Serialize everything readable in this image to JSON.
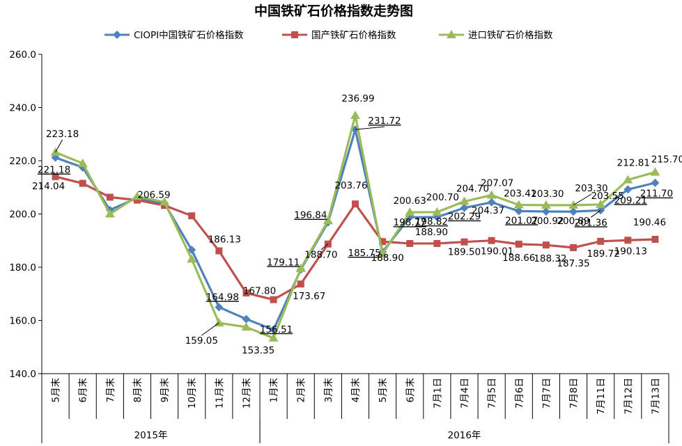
{
  "chart_data": {
    "type": "line",
    "title": "中国铁矿石价格指数走势图",
    "xlabel": "",
    "ylabel": "",
    "ylim": [
      140,
      260
    ],
    "yticks": [
      "140.0",
      "160.0",
      "180.0",
      "200.0",
      "220.0",
      "240.0",
      "260.0"
    ],
    "grid": false,
    "legend_position": "top",
    "categories": [
      "5月末",
      "6月末",
      "7月末",
      "8月末",
      "9月末",
      "10月末",
      "11月末",
      "12月末",
      "1月末",
      "2月末",
      "3月末",
      "4月末",
      "5月末",
      "6月末",
      "7月1日",
      "7月4日",
      "7月5日",
      "7月6日",
      "7月7日",
      "7月8日",
      "7月11日",
      "7月12日",
      "7月13日"
    ],
    "year_groups": [
      {
        "label": "2015年",
        "start": 0,
        "end": 7
      },
      {
        "label": "2016年",
        "start": 8,
        "end": 22
      }
    ],
    "series": [
      {
        "name": "CIOPI中国铁矿石价格指数",
        "color": "#4f81bd",
        "marker": "diamond",
        "values": [
          221.18,
          217.5,
          201.5,
          206.0,
          204.0,
          186.5,
          164.98,
          160.5,
          156.51,
          179.11,
          196.84,
          231.72,
          185.75,
          198.77,
          198.82,
          202.29,
          204.37,
          201.07,
          200.92,
          200.89,
          201.36,
          209.21,
          211.7
        ]
      },
      {
        "name": "国产铁矿石价格指数",
        "color": "#c0504d",
        "marker": "square",
        "values": [
          214.04,
          211.5,
          206.3,
          205.2,
          203.2,
          199.3,
          186.13,
          170.3,
          167.8,
          173.67,
          188.7,
          203.76,
          189.6,
          188.9,
          188.9,
          189.5,
          190.01,
          188.66,
          188.32,
          187.35,
          189.72,
          190.13,
          190.46
        ]
      },
      {
        "name": "进口铁矿石价格指数",
        "color": "#9bbb59",
        "marker": "triangle",
        "values": [
          223.18,
          219.0,
          200.0,
          206.59,
          204.5,
          183.0,
          159.05,
          157.5,
          153.35,
          179.5,
          197.5,
          236.99,
          185.0,
          200.63,
          200.7,
          204.7,
          207.07,
          203.41,
          203.3,
          203.3,
          203.55,
          212.81,
          215.7
        ]
      }
    ],
    "annotations": [
      {
        "text": "223.18",
        "series": 2,
        "index": 0,
        "dx": 10,
        "dy": -22,
        "leader": true
      },
      {
        "text": "221.18",
        "series": 0,
        "index": 0,
        "dx": -2,
        "dy": 22,
        "underline": true
      },
      {
        "text": "214.04",
        "series": 1,
        "index": 0,
        "dx": -10,
        "dy": 18
      },
      {
        "text": "206.59",
        "series": 2,
        "index": 3,
        "dx": 24,
        "dy": 2
      },
      {
        "text": "186.13",
        "series": 1,
        "index": 6,
        "dx": 8,
        "dy": -12
      },
      {
        "text": "164.98",
        "series": 0,
        "index": 6,
        "dx": 5,
        "dy": -10,
        "underline": true
      },
      {
        "text": "159.05",
        "series": 2,
        "index": 6,
        "dx": -25,
        "dy": 30,
        "leader": true
      },
      {
        "text": "167.80",
        "series": 1,
        "index": 8,
        "dx": -20,
        "dy": -8
      },
      {
        "text": "156.51",
        "series": 0,
        "index": 8,
        "dx": 4,
        "dy": 4,
        "underline": true
      },
      {
        "text": "153.35",
        "series": 2,
        "index": 8,
        "dx": -22,
        "dy": 22
      },
      {
        "text": "179.11",
        "series": 0,
        "index": 9,
        "dx": -25,
        "dy": -6,
        "underline": true
      },
      {
        "text": "173.67",
        "series": 1,
        "index": 9,
        "dx": 12,
        "dy": 22
      },
      {
        "text": "196.84",
        "series": 0,
        "index": 10,
        "dx": -25,
        "dy": -6,
        "underline": true
      },
      {
        "text": "188.70",
        "series": 1,
        "index": 10,
        "dx": -10,
        "dy": 20,
        "leader": true
      },
      {
        "text": "236.99",
        "series": 2,
        "index": 11,
        "dx": 4,
        "dy": -20
      },
      {
        "text": "231.72",
        "series": 0,
        "index": 11,
        "dx": 42,
        "dy": -8,
        "underline": true,
        "leader": true
      },
      {
        "text": "203.76",
        "series": 1,
        "index": 11,
        "dx": -6,
        "dy": -22
      },
      {
        "text": "185.75",
        "series": 0,
        "index": 12,
        "dx": -26,
        "dy": 6,
        "underline": true
      },
      {
        "text": "188.90",
        "series": 1,
        "index": 13,
        "dx": -32,
        "dy": 25
      },
      {
        "text": "200.63",
        "series": 2,
        "index": 13,
        "dx": 0,
        "dy": -12
      },
      {
        "text": "198.77",
        "series": 0,
        "index": 13,
        "dx": 0,
        "dy": 12,
        "underline": true
      },
      {
        "text": "200.70",
        "series": 2,
        "index": 14,
        "dx": 8,
        "dy": -17
      },
      {
        "text": "198.82",
        "series": 0,
        "index": 14,
        "dx": -8,
        "dy": 11,
        "underline": true
      },
      {
        "text": "188.90",
        "series": 1,
        "index": 14,
        "dx": -8,
        "dy": -12
      },
      {
        "text": "204.70",
        "series": 2,
        "index": 15,
        "dx": 12,
        "dy": -14
      },
      {
        "text": "202.29",
        "series": 0,
        "index": 15,
        "dx": 0,
        "dy": 17,
        "underline": true
      },
      {
        "text": "189.50",
        "series": 1,
        "index": 15,
        "dx": 0,
        "dy": 19
      },
      {
        "text": "207.07",
        "series": 2,
        "index": 16,
        "dx": 8,
        "dy": -13
      },
      {
        "text": "204.37",
        "series": 0,
        "index": 16,
        "dx": -5,
        "dy": 16
      },
      {
        "text": "190.01",
        "series": 1,
        "index": 16,
        "dx": 8,
        "dy": 20
      },
      {
        "text": "203.41",
        "series": 2,
        "index": 17,
        "dx": 2,
        "dy": -12
      },
      {
        "text": "201.07",
        "series": 0,
        "index": 17,
        "dx": 4,
        "dy": 18,
        "underline": true
      },
      {
        "text": "188.66",
        "series": 1,
        "index": 17,
        "dx": 0,
        "dy": 24
      },
      {
        "text": "203.30",
        "series": 2,
        "index": 18,
        "dx": 2,
        "dy": -12
      },
      {
        "text": "200.92",
        "series": 0,
        "index": 18,
        "dx": 2,
        "dy": 18
      },
      {
        "text": "188.32",
        "series": 1,
        "index": 18,
        "dx": 6,
        "dy": 24
      },
      {
        "text": "203.30",
        "series": 2,
        "index": 19,
        "dx": 26,
        "dy": -20,
        "leader": true
      },
      {
        "text": "200.89",
        "series": 0,
        "index": 19,
        "dx": 0,
        "dy": 18
      },
      {
        "text": "187.35",
        "series": 1,
        "index": 19,
        "dx": 0,
        "dy": 27
      },
      {
        "text": "203.55",
        "series": 2,
        "index": 20,
        "dx": 10,
        "dy": -8
      },
      {
        "text": "201.36",
        "series": 0,
        "index": 20,
        "dx": -14,
        "dy": 22,
        "underline": true,
        "leader": true
      },
      {
        "text": "189.72",
        "series": 1,
        "index": 20,
        "dx": 4,
        "dy": 22
      },
      {
        "text": "212.81",
        "series": 2,
        "index": 21,
        "dx": 8,
        "dy": -20
      },
      {
        "text": "209.21",
        "series": 0,
        "index": 21,
        "dx": 4,
        "dy": 20,
        "underline": true
      },
      {
        "text": "190.13",
        "series": 1,
        "index": 21,
        "dx": 4,
        "dy": 20
      },
      {
        "text": "215.70",
        "series": 2,
        "index": 22,
        "dx": 18,
        "dy": -14
      },
      {
        "text": "211.70",
        "series": 0,
        "index": 22,
        "dx": 2,
        "dy": 20,
        "underline": true
      },
      {
        "text": "190.46",
        "series": 1,
        "index": 22,
        "dx": -8,
        "dy": -20
      }
    ]
  }
}
